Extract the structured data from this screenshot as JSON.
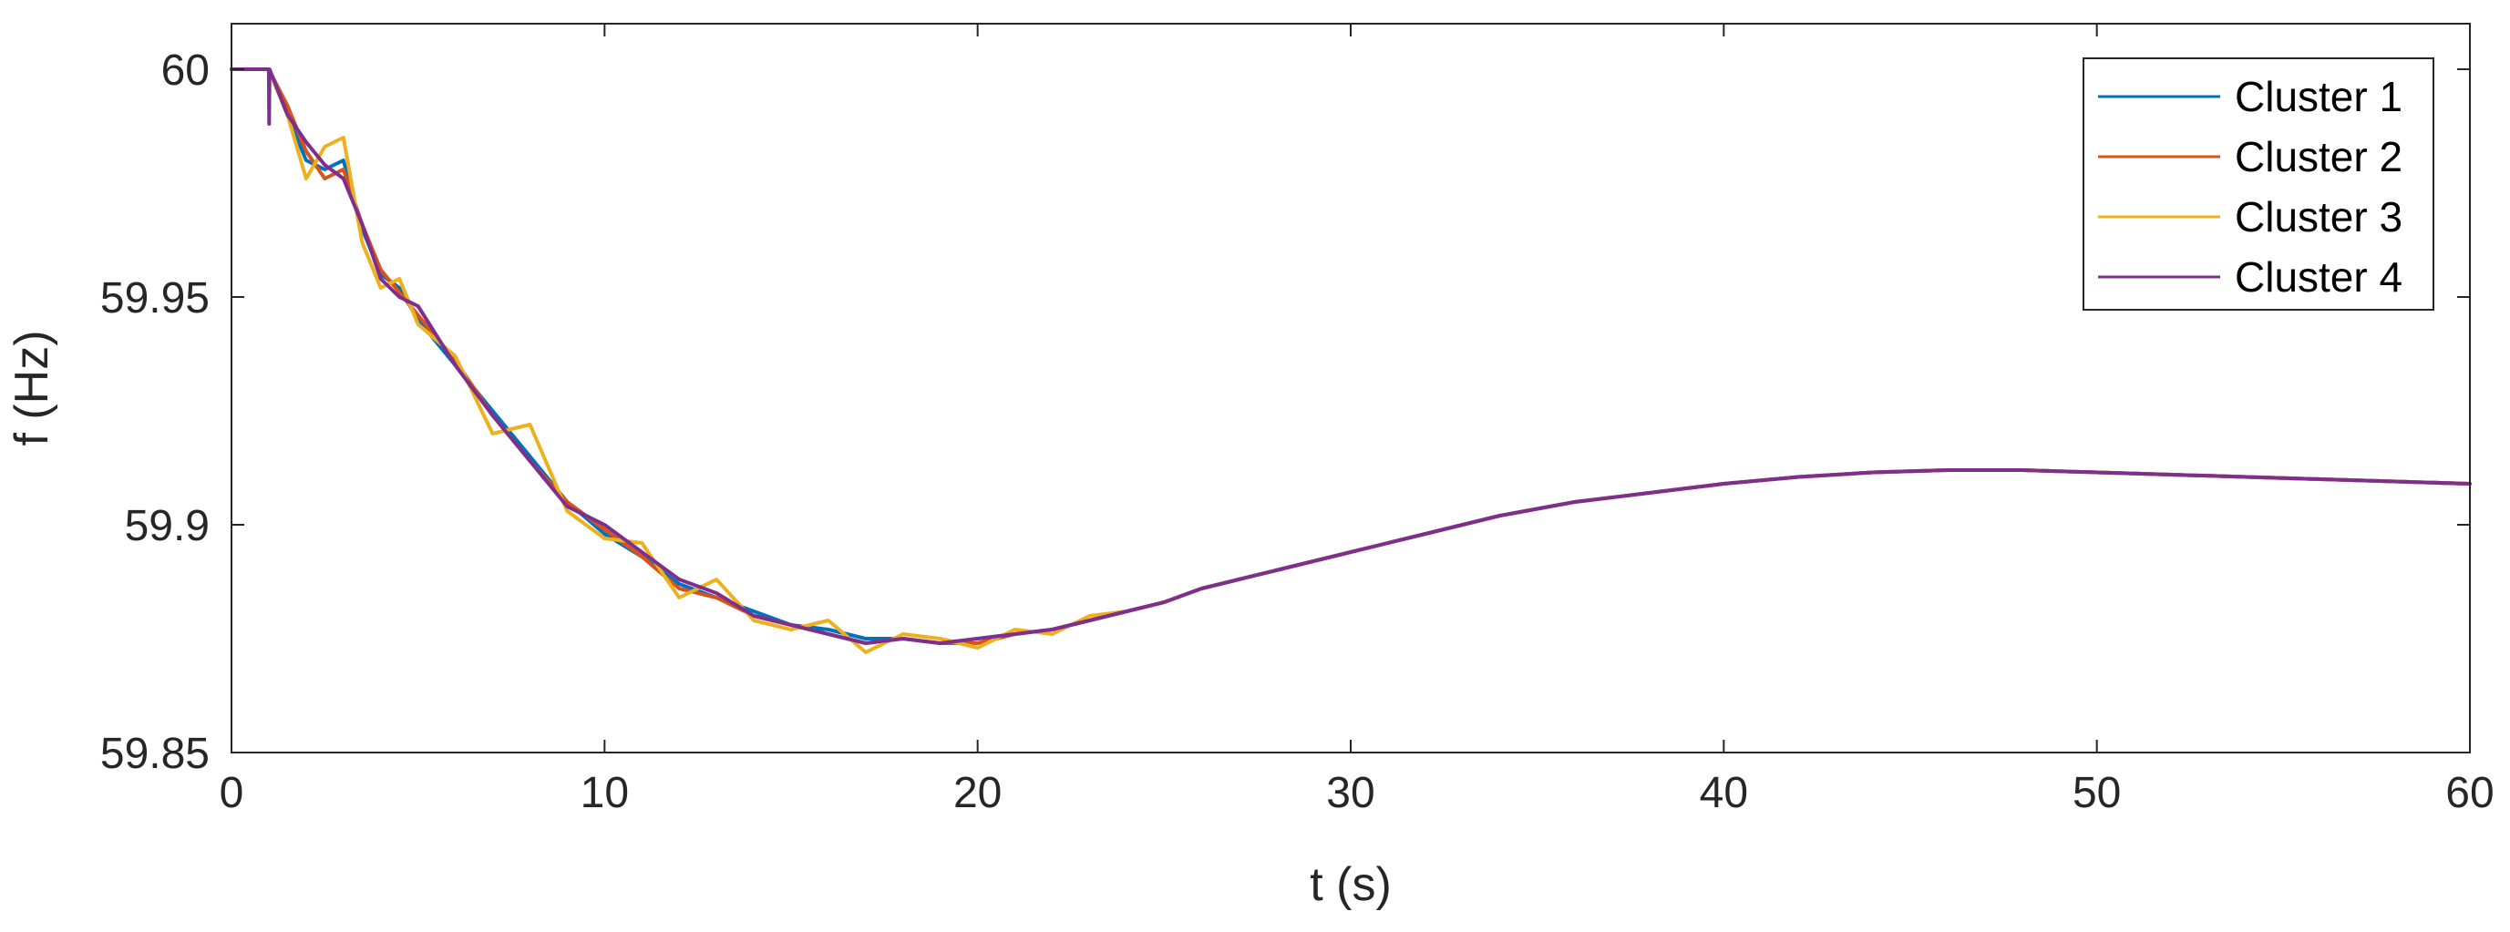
{
  "chart_data": {
    "type": "line",
    "title": "",
    "xlabel": "t (s)",
    "ylabel": "f (Hz)",
    "xlim": [
      0,
      60
    ],
    "ylim": [
      59.85,
      60.01
    ],
    "xticks": [
      0,
      10,
      20,
      30,
      40,
      50,
      60
    ],
    "yticks": [
      59.85,
      59.9,
      59.95,
      60
    ],
    "xtick_labels": [
      "0",
      "10",
      "20",
      "30",
      "40",
      "50",
      "60"
    ],
    "ytick_labels": [
      "59.85",
      "59.9",
      "59.95",
      "60"
    ],
    "grid": false,
    "legend_position": "top-right",
    "series": [
      {
        "name": "Cluster 1",
        "color": "#0072BD",
        "x": [
          0,
          1,
          1.5,
          2,
          2.5,
          3,
          3.5,
          4,
          4.5,
          5,
          6,
          7,
          8,
          9,
          10,
          11,
          12,
          13,
          14,
          15,
          16,
          17,
          18,
          19,
          20,
          21,
          22,
          23,
          24,
          25,
          26,
          27,
          28,
          29,
          30,
          32,
          34,
          36,
          38,
          40,
          42,
          44,
          46,
          48,
          50,
          52,
          54,
          56,
          58,
          60
        ],
        "y": [
          60,
          60,
          59.99,
          59.98,
          59.978,
          59.98,
          59.965,
          59.955,
          59.952,
          59.945,
          59.935,
          59.925,
          59.915,
          59.905,
          59.898,
          59.893,
          59.887,
          59.884,
          59.881,
          59.878,
          59.877,
          59.875,
          59.875,
          59.874,
          59.875,
          59.876,
          59.877,
          59.879,
          59.881,
          59.883,
          59.886,
          59.888,
          59.89,
          59.892,
          59.894,
          59.898,
          59.902,
          59.905,
          59.907,
          59.909,
          59.9105,
          59.9115,
          59.912,
          59.912,
          59.9115,
          59.911,
          59.9105,
          59.91,
          59.9095,
          59.909
        ]
      },
      {
        "name": "Cluster 2",
        "color": "#D95319",
        "x": [
          0,
          1,
          1.5,
          2,
          2.5,
          3,
          3.5,
          4,
          4.5,
          5,
          6,
          7,
          8,
          9,
          10,
          11,
          12,
          13,
          14,
          15,
          16,
          17,
          18,
          19,
          20,
          21,
          22,
          23,
          24,
          25,
          26,
          27,
          28,
          29,
          30,
          32,
          34,
          36,
          38,
          40,
          42,
          44,
          46,
          48,
          50,
          52,
          54,
          56,
          58,
          60
        ],
        "y": [
          60,
          60,
          59.992,
          59.982,
          59.976,
          59.978,
          59.966,
          59.956,
          59.951,
          59.946,
          59.936,
          59.924,
          59.914,
          59.905,
          59.899,
          59.893,
          59.886,
          59.884,
          59.88,
          59.878,
          59.876,
          59.874,
          59.875,
          59.874,
          59.874,
          59.876,
          59.877,
          59.879,
          59.881,
          59.883,
          59.886,
          59.888,
          59.89,
          59.892,
          59.894,
          59.898,
          59.902,
          59.905,
          59.907,
          59.909,
          59.9105,
          59.9115,
          59.912,
          59.912,
          59.9115,
          59.911,
          59.9105,
          59.91,
          59.9095,
          59.909
        ]
      },
      {
        "name": "Cluster 3",
        "color": "#EDB120",
        "x": [
          0,
          1,
          1.5,
          2,
          2.5,
          3,
          3.5,
          4,
          4.5,
          5,
          6,
          7,
          8,
          9,
          10,
          11,
          12,
          13,
          14,
          15,
          16,
          17,
          18,
          19,
          20,
          21,
          22,
          23,
          24,
          25,
          26,
          27,
          28,
          29,
          30,
          32,
          34,
          36,
          38,
          40,
          42,
          44,
          46,
          48,
          50,
          52,
          54,
          56,
          58,
          60
        ],
        "y": [
          60,
          60,
          59.99,
          59.976,
          59.983,
          59.985,
          59.962,
          59.952,
          59.954,
          59.944,
          59.937,
          59.92,
          59.922,
          59.903,
          59.897,
          59.896,
          59.884,
          59.888,
          59.879,
          59.877,
          59.879,
          59.872,
          59.876,
          59.875,
          59.873,
          59.877,
          59.876,
          59.88,
          59.881,
          59.883,
          59.886,
          59.888,
          59.89,
          59.892,
          59.894,
          59.898,
          59.902,
          59.905,
          59.907,
          59.909,
          59.9105,
          59.9115,
          59.912,
          59.912,
          59.9115,
          59.911,
          59.9105,
          59.91,
          59.9095,
          59.909
        ]
      },
      {
        "name": "Cluster 4",
        "color": "#7E2F8E",
        "x": [
          0,
          1,
          1.01,
          1.02,
          1.5,
          2,
          2.5,
          3,
          3.5,
          4,
          4.5,
          5,
          6,
          7,
          8,
          9,
          10,
          11,
          12,
          13,
          14,
          15,
          16,
          17,
          18,
          19,
          20,
          21,
          22,
          23,
          24,
          25,
          26,
          27,
          28,
          29,
          30,
          32,
          34,
          36,
          38,
          40,
          42,
          44,
          46,
          48,
          50,
          52,
          54,
          56,
          58,
          60
        ],
        "y": [
          60,
          60,
          59.988,
          60,
          59.99,
          59.984,
          59.979,
          59.976,
          59.966,
          59.954,
          59.95,
          59.948,
          59.935,
          59.924,
          59.914,
          59.904,
          59.9,
          59.894,
          59.888,
          59.885,
          59.88,
          59.878,
          59.876,
          59.874,
          59.875,
          59.874,
          59.875,
          59.876,
          59.877,
          59.879,
          59.881,
          59.883,
          59.886,
          59.888,
          59.89,
          59.892,
          59.894,
          59.898,
          59.902,
          59.905,
          59.907,
          59.909,
          59.9105,
          59.9115,
          59.912,
          59.912,
          59.9115,
          59.911,
          59.9105,
          59.91,
          59.9095,
          59.909
        ]
      }
    ]
  }
}
